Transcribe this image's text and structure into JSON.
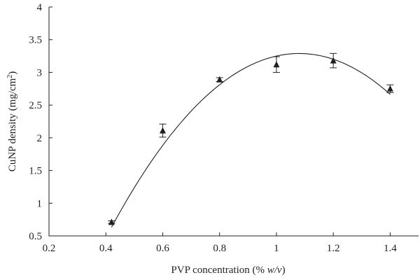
{
  "chart_data": {
    "type": "scatter",
    "title": "",
    "xlabel_main": "PVP concentration (% ",
    "xlabel_italic": "w/v",
    "xlabel_end": ")",
    "ylabel_main": "CuNP density (mg/cm",
    "ylabel_sup": "2",
    "ylabel_end": ")",
    "xlim": [
      0.2,
      1.5
    ],
    "ylim": [
      0.5,
      4
    ],
    "xticks": [
      0.2,
      0.4,
      0.6,
      0.8,
      1,
      1.2,
      1.4
    ],
    "xtick_labels": [
      "0.2",
      "0.4",
      "0.6",
      "0.8",
      "1",
      "1.2",
      "1.4"
    ],
    "yticks": [
      0.5,
      1,
      1.5,
      2,
      2.5,
      3,
      3.5,
      4
    ],
    "ytick_labels": [
      "0.5",
      "1",
      "1.5",
      "2",
      "2.5",
      "3",
      "3.5",
      "4"
    ],
    "grid": false,
    "series": [
      {
        "marker": "triangle",
        "color": "#231f20",
        "points": [
          {
            "x": 0.42,
            "y": 0.71,
            "err": 0.02
          },
          {
            "x": 0.6,
            "y": 2.11,
            "err": 0.1
          },
          {
            "x": 0.8,
            "y": 2.89,
            "err": 0.03
          },
          {
            "x": 1.0,
            "y": 3.12,
            "err": 0.12
          },
          {
            "x": 1.2,
            "y": 3.18,
            "err": 0.11
          },
          {
            "x": 1.4,
            "y": 2.75,
            "err": 0.06
          }
        ]
      }
    ],
    "fit_curve": {
      "type": "polynomial-2",
      "color": "#231f20",
      "coefficients": [
        -6.1,
        13.175,
        -3.825
      ],
      "x_range": [
        0.42,
        1.4
      ]
    }
  }
}
